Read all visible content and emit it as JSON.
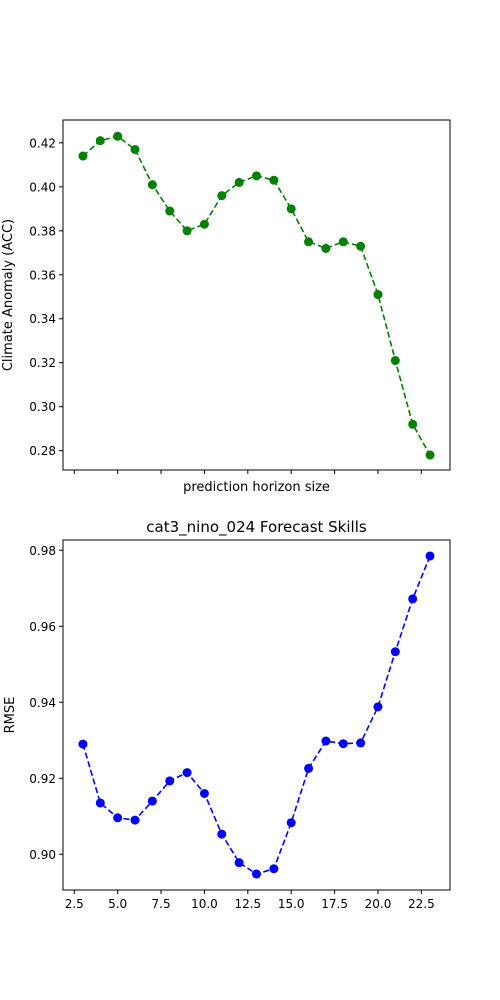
{
  "chart_data": [
    {
      "type": "line",
      "title": "",
      "xlabel": "prediction horizon size",
      "ylabel": "Climate Anomaly (ACC)",
      "x": [
        3,
        4,
        5,
        6,
        7,
        8,
        9,
        10,
        11,
        12,
        13,
        14,
        15,
        16,
        17,
        18,
        19,
        20,
        21,
        22,
        23
      ],
      "series": [
        {
          "values": [
            0.414,
            0.421,
            0.423,
            0.417,
            0.401,
            0.389,
            0.38,
            0.383,
            0.396,
            0.402,
            0.405,
            0.403,
            0.39,
            0.375,
            0.372,
            0.375,
            0.373,
            0.351,
            0.321,
            0.292,
            0.278
          ],
          "color": "#008000",
          "linestyle": "dashed",
          "marker": "circle"
        }
      ],
      "xlim": [
        1.85,
        24.15
      ],
      "ylim": [
        0.2712,
        0.4304
      ],
      "x_ticks": [
        2.5,
        5.0,
        7.5,
        10.0,
        12.5,
        15.0,
        17.5,
        20.0,
        22.5
      ],
      "x_tick_labels": [
        "",
        "",
        "",
        "",
        "",
        "",
        "",
        "",
        ""
      ],
      "y_ticks": [
        0.28,
        0.3,
        0.32,
        0.34,
        0.36,
        0.38,
        0.4,
        0.42
      ],
      "y_tick_labels": [
        "0.28",
        "0.30",
        "0.32",
        "0.34",
        "0.36",
        "0.38",
        "0.40",
        "0.42"
      ],
      "grid": false
    },
    {
      "type": "line",
      "title": "cat3_nino_024 Forecast Skills",
      "xlabel": "",
      "ylabel": "RMSE",
      "x": [
        3,
        4,
        5,
        6,
        7,
        8,
        9,
        10,
        11,
        12,
        13,
        14,
        15,
        16,
        17,
        18,
        19,
        20,
        21,
        22,
        23
      ],
      "series": [
        {
          "values": [
            0.929,
            0.9135,
            0.9096,
            0.909,
            0.914,
            0.9193,
            0.9215,
            0.916,
            0.9053,
            0.8978,
            0.8948,
            0.8962,
            0.9083,
            0.9226,
            0.9298,
            0.9291,
            0.9293,
            0.9388,
            0.9533,
            0.9672,
            0.9785
          ],
          "color": "#0000ff",
          "linestyle": "dashed",
          "marker": "circle"
        }
      ],
      "xlim": [
        1.85,
        24.15
      ],
      "ylim": [
        0.8906,
        0.9827
      ],
      "x_ticks": [
        2.5,
        5.0,
        7.5,
        10.0,
        12.5,
        15.0,
        17.5,
        20.0,
        22.5
      ],
      "x_tick_labels": [
        "2.5",
        "5.0",
        "7.5",
        "10.0",
        "12.5",
        "15.0",
        "17.5",
        "20.0",
        "22.5"
      ],
      "y_ticks": [
        0.9,
        0.92,
        0.94,
        0.96,
        0.98
      ],
      "y_tick_labels": [
        "0.90",
        "0.92",
        "0.94",
        "0.96",
        "0.98"
      ],
      "grid": false
    }
  ]
}
